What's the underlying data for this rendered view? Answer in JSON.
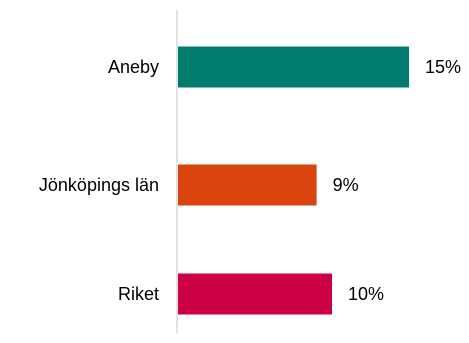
{
  "chart_data": {
    "type": "bar",
    "orientation": "horizontal",
    "categories": [
      "Aneby",
      "Jönköpings län",
      "Riket"
    ],
    "values": [
      15,
      9,
      10
    ],
    "value_labels": [
      "15%",
      "9%",
      "10%"
    ],
    "unit": "%",
    "xlim": [
      0,
      20
    ],
    "grid": false,
    "legend": "none",
    "colors": [
      "#007D6E",
      "#D9440F",
      "#CC0044"
    ],
    "axis_color": "#D9D9D9"
  }
}
